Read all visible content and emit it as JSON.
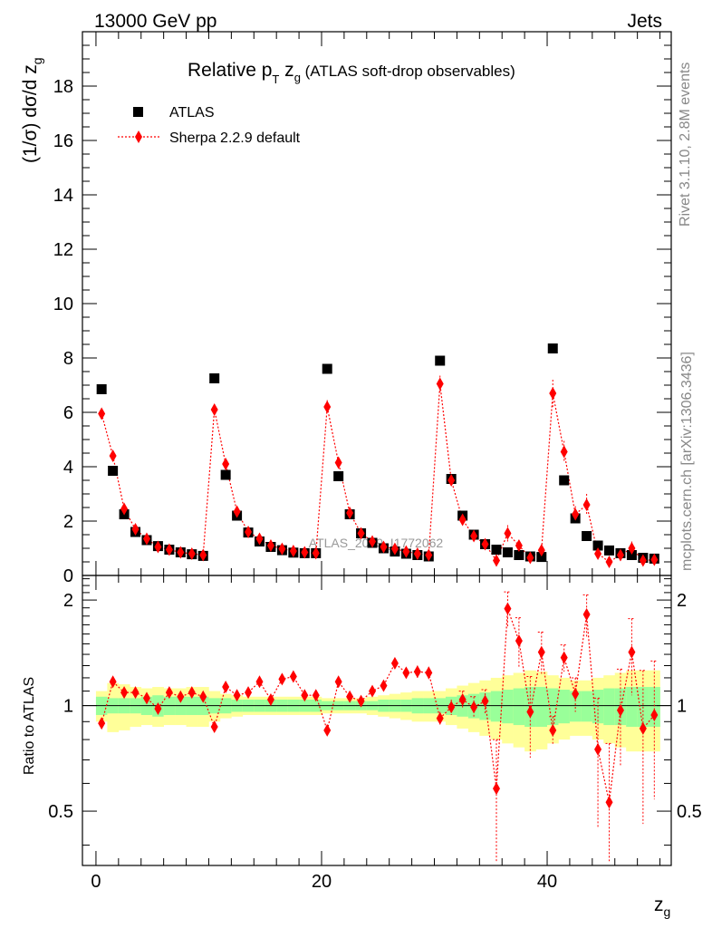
{
  "header": {
    "left": "13000 GeV pp",
    "right": "Jets"
  },
  "side_labels": {
    "rivet": "Rivet 3.1.10,  2.8M events",
    "mcplots": "mcplots.cern.ch [arXiv:1306.3436]"
  },
  "watermark": "ATLAS_2019_I1772062",
  "chart_data": {
    "type": "scatter",
    "title": "Relative pT zg (ATLAS soft-drop observables)",
    "title_parts": {
      "main": "Relative p",
      "sub_T": "T",
      "mid": " z",
      "sub_g": "g",
      "tail": " (ATLAS soft-drop observables)"
    },
    "ylabel": "(1/σ) dσ/d z",
    "ylabel_sub": "g",
    "xlabel": "z",
    "xlabel_sub": "g",
    "ratio_ylabel": "Ratio to ATLAS",
    "xlim": [
      -1.2,
      51
    ],
    "ylim": [
      0,
      20
    ],
    "ratio_ylim": [
      0.35,
      2.35
    ],
    "ratio_scale": "log",
    "x_ticks": [
      "0",
      "20",
      "40"
    ],
    "y_ticks": [
      "0",
      "2",
      "4",
      "6",
      "8",
      "10",
      "12",
      "14",
      "16",
      "18"
    ],
    "ratio_ticks": [
      "0.5",
      "1",
      "2"
    ],
    "legend_position": "top-left",
    "series": [
      {
        "name": "ATLAS",
        "color": "#000000",
        "marker": "square",
        "x": [
          0.5,
          1.5,
          2.5,
          3.5,
          4.5,
          5.5,
          6.5,
          7.5,
          8.5,
          9.5,
          10.5,
          11.5,
          12.5,
          13.5,
          14.5,
          15.5,
          16.5,
          17.5,
          18.5,
          19.5,
          20.5,
          21.5,
          22.5,
          23.5,
          24.5,
          25.5,
          26.5,
          27.5,
          28.5,
          29.5,
          30.5,
          31.5,
          32.5,
          33.5,
          34.5,
          35.5,
          36.5,
          37.5,
          38.5,
          39.5,
          40.5,
          41.5,
          42.5,
          43.5,
          44.5,
          45.5,
          46.5,
          47.5,
          48.5,
          49.5
        ],
        "values": [
          6.85,
          3.85,
          2.25,
          1.6,
          1.3,
          1.08,
          0.95,
          0.85,
          0.78,
          0.72,
          7.25,
          3.7,
          2.2,
          1.58,
          1.25,
          1.05,
          0.93,
          0.84,
          0.82,
          0.82,
          7.6,
          3.65,
          2.25,
          1.55,
          1.2,
          1.0,
          0.88,
          0.8,
          0.75,
          0.7,
          7.9,
          3.55,
          2.2,
          1.5,
          1.15,
          0.95,
          0.85,
          0.75,
          0.7,
          0.68,
          8.35,
          3.5,
          2.1,
          1.45,
          1.1,
          0.92,
          0.82,
          0.75,
          0.65,
          0.62
        ]
      },
      {
        "name": "Sherpa 2.2.9 default",
        "color": "#ff0000",
        "marker": "diamond",
        "line": "dotted",
        "values": [
          5.95,
          4.4,
          2.45,
          1.7,
          1.35,
          1.05,
          0.95,
          0.85,
          0.8,
          0.75,
          6.1,
          4.1,
          2.35,
          1.6,
          1.35,
          1.1,
          0.98,
          0.9,
          0.85,
          0.82,
          6.2,
          4.15,
          2.3,
          1.55,
          1.25,
          1.05,
          0.98,
          0.88,
          0.8,
          0.75,
          7.05,
          3.5,
          2.05,
          1.45,
          1.15,
          0.55,
          1.55,
          1.1,
          0.65,
          0.93,
          6.7,
          4.55,
          2.25,
          2.6,
          0.8,
          0.5,
          0.75,
          1.0,
          0.55,
          0.58
        ],
        "err": [
          0.15,
          0.12,
          0.08,
          0.06,
          0.05,
          0.05,
          0.05,
          0.05,
          0.05,
          0.05,
          0.2,
          0.15,
          0.1,
          0.08,
          0.06,
          0.05,
          0.05,
          0.05,
          0.05,
          0.05,
          0.25,
          0.18,
          0.12,
          0.08,
          0.07,
          0.06,
          0.06,
          0.06,
          0.06,
          0.06,
          0.3,
          0.2,
          0.15,
          0.1,
          0.1,
          0.25,
          0.3,
          0.2,
          0.15,
          0.2,
          0.5,
          0.4,
          0.3,
          0.4,
          0.2,
          0.2,
          0.25,
          0.25,
          0.2,
          0.2
        ]
      }
    ],
    "ratio": {
      "values": [
        0.89,
        1.17,
        1.09,
        1.09,
        1.05,
        0.98,
        1.09,
        1.06,
        1.09,
        1.06,
        0.87,
        1.13,
        1.07,
        1.09,
        1.17,
        1.04,
        1.19,
        1.21,
        1.07,
        1.07,
        0.85,
        1.17,
        1.06,
        1.03,
        1.1,
        1.14,
        1.32,
        1.24,
        1.25,
        1.24,
        0.92,
        0.99,
        1.04,
        0.99,
        1.03,
        0.58,
        1.89,
        1.53,
        0.96,
        1.42,
        0.85,
        1.37,
        1.08,
        1.82,
        0.75,
        0.53,
        0.97,
        1.42,
        0.86,
        0.94
      ],
      "err": [
        0.02,
        0.03,
        0.02,
        0.02,
        0.02,
        0.02,
        0.02,
        0.02,
        0.02,
        0.02,
        0.03,
        0.03,
        0.02,
        0.02,
        0.02,
        0.02,
        0.02,
        0.02,
        0.02,
        0.02,
        0.03,
        0.03,
        0.02,
        0.02,
        0.02,
        0.03,
        0.04,
        0.04,
        0.05,
        0.05,
        0.04,
        0.05,
        0.06,
        0.07,
        0.08,
        0.22,
        0.22,
        0.25,
        0.25,
        0.2,
        0.08,
        0.12,
        0.12,
        0.25,
        0.3,
        0.25,
        0.3,
        0.35,
        0.4,
        0.4
      ],
      "band_inner": [
        0.06,
        0.05,
        0.05,
        0.05,
        0.06,
        0.07,
        0.06,
        0.06,
        0.06,
        0.06,
        0.05,
        0.05,
        0.04,
        0.04,
        0.04,
        0.04,
        0.04,
        0.04,
        0.04,
        0.04,
        0.03,
        0.03,
        0.03,
        0.03,
        0.03,
        0.04,
        0.04,
        0.04,
        0.05,
        0.05,
        0.05,
        0.06,
        0.07,
        0.08,
        0.09,
        0.1,
        0.11,
        0.12,
        0.13,
        0.13,
        0.12,
        0.11,
        0.1,
        0.1,
        0.11,
        0.12,
        0.12,
        0.13,
        0.13,
        0.13
      ],
      "band_outer": [
        0.1,
        0.16,
        0.15,
        0.13,
        0.12,
        0.13,
        0.12,
        0.12,
        0.13,
        0.13,
        0.1,
        0.08,
        0.07,
        0.06,
        0.06,
        0.06,
        0.06,
        0.06,
        0.06,
        0.06,
        0.05,
        0.05,
        0.05,
        0.05,
        0.06,
        0.07,
        0.08,
        0.09,
        0.1,
        0.1,
        0.1,
        0.12,
        0.14,
        0.16,
        0.18,
        0.2,
        0.22,
        0.24,
        0.26,
        0.25,
        0.22,
        0.2,
        0.18,
        0.18,
        0.2,
        0.22,
        0.24,
        0.26,
        0.26,
        0.26
      ]
    }
  }
}
